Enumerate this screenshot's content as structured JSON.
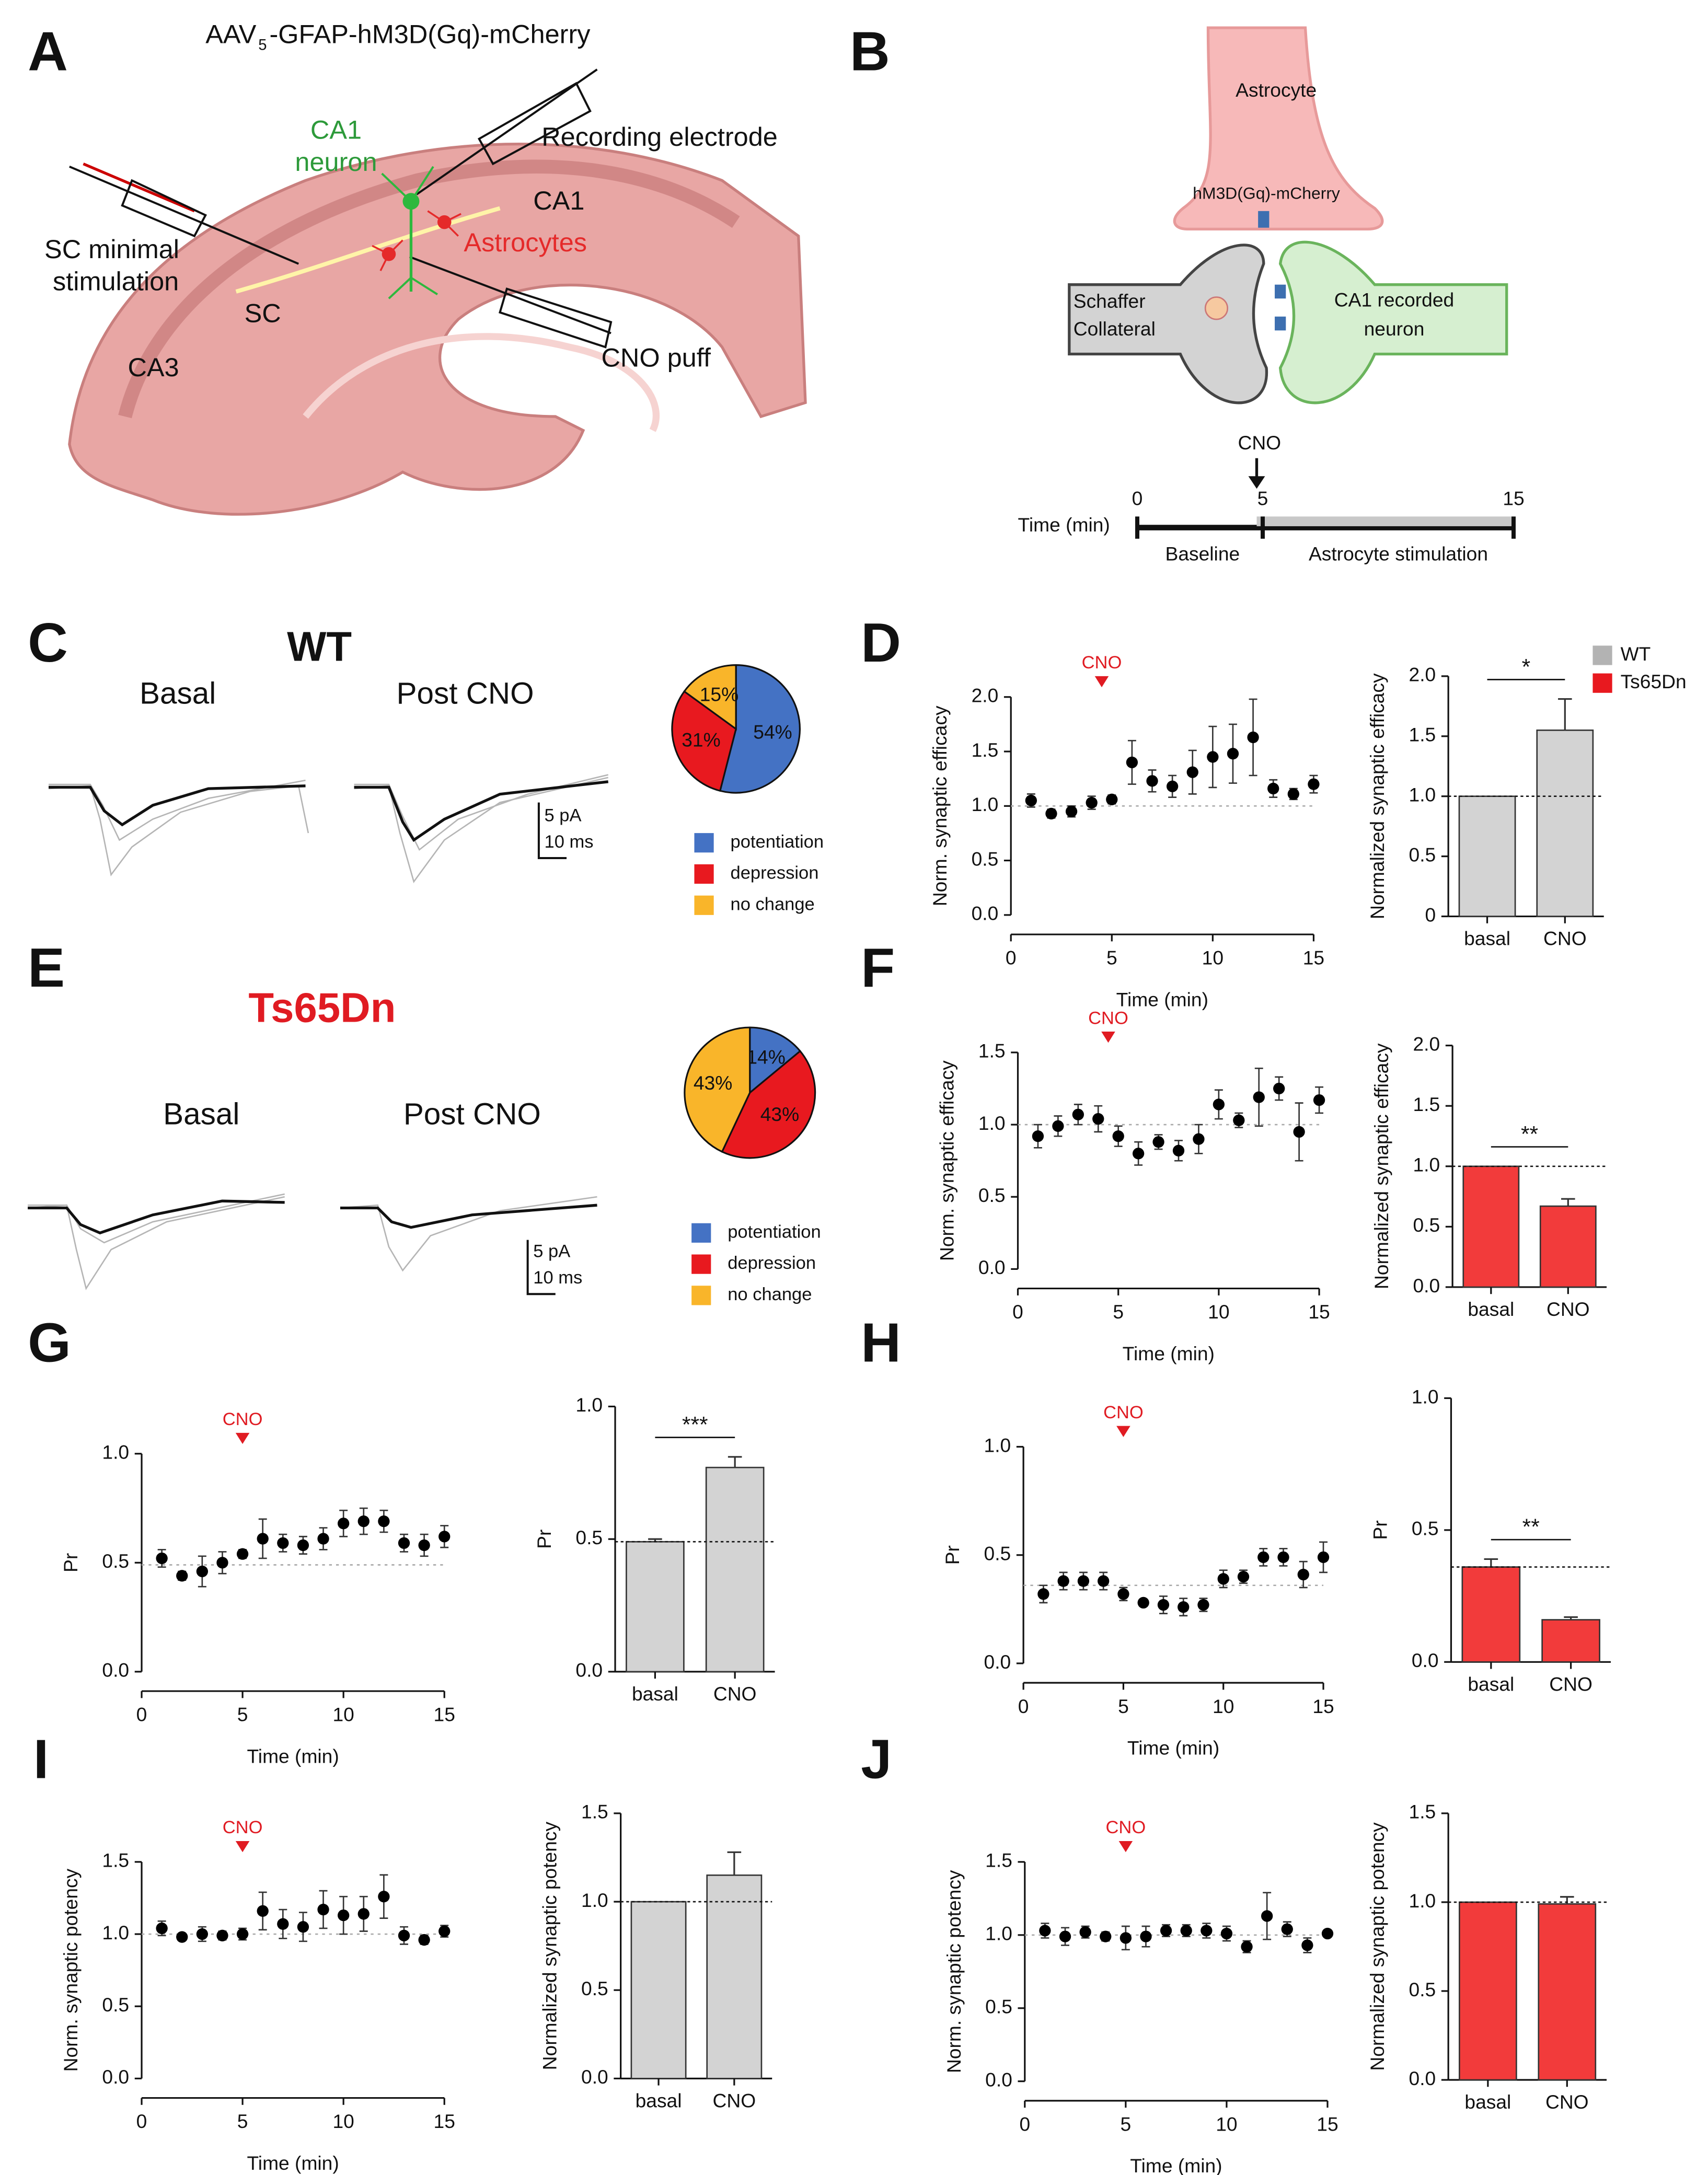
{
  "figure": {
    "letters": [
      "A",
      "B",
      "C",
      "D",
      "E",
      "F",
      "G",
      "H",
      "I",
      "J"
    ],
    "panel_a": {
      "construct_main": "AAV",
      "construct_sub": "5",
      "construct_rest": "-GFAP-hM3D(Gq)-mCherry",
      "ca1_neuron": [
        "CA1",
        "neuron"
      ],
      "recording": "Recording electrode",
      "ca1": "CA1",
      "astrocytes": "Astrocytes",
      "sc_stim": [
        "SC minimal",
        "stimulation"
      ],
      "sc": "SC",
      "ca3": "CA3",
      "cno_puff": "CNO puff"
    },
    "panel_b": {
      "astrocyte": "Astrocyte",
      "receptor": "hM3D(Gq)-mCherry",
      "schaffer": [
        "Schaffer",
        "Collateral"
      ],
      "ca1_neuron": [
        "CA1 recorded",
        "neuron"
      ],
      "cno": "CNO",
      "time_label": "Time (min)",
      "ticks": [
        0,
        5,
        15
      ],
      "xlim": [
        0,
        15
      ],
      "baseline": "Baseline",
      "stimulation": "Astrocyte stimulation"
    },
    "panel_c": {
      "title": "WT",
      "basal": "Basal",
      "post": "Post CNO",
      "scale_y": "5 pA",
      "scale_x": "10 ms"
    },
    "panel_e": {
      "title": "Ts65Dn",
      "basal": "Basal",
      "post": "Post CNO",
      "scale_y": "5 pA",
      "scale_x": "10 ms"
    }
  },
  "chart_data": [
    {
      "type": "pie",
      "labels": [
        "potentiation",
        "depression",
        "no change"
      ],
      "values": [
        54,
        31,
        15
      ],
      "value_labels": [
        "54%",
        "31%",
        "15%"
      ],
      "colors": [
        "#4472c4",
        "#e8191f",
        "#f9b52a"
      ]
    },
    {
      "type": "scatter",
      "x": [
        1,
        2,
        3,
        4,
        5,
        6,
        7,
        8,
        9,
        10,
        11,
        12,
        13,
        14,
        15
      ],
      "values": [
        1.05,
        0.93,
        0.95,
        1.03,
        1.06,
        1.4,
        1.23,
        1.18,
        1.31,
        1.45,
        1.48,
        1.63,
        1.16,
        1.11,
        1.2
      ],
      "errors": [
        0.06,
        0.04,
        0.05,
        0.06,
        0.04,
        0.2,
        0.1,
        0.1,
        0.2,
        0.28,
        0.27,
        0.35,
        0.08,
        0.05,
        0.08
      ],
      "xlim": [
        0,
        15
      ],
      "xticks": [
        0,
        5,
        10,
        15
      ],
      "ylim": [
        0,
        2
      ],
      "yticks": [
        {
          "value": 0,
          "label": "0.0"
        },
        0.5,
        {
          "value": 1,
          "label": "1.0"
        },
        1.5,
        {
          "value": 2,
          "label": "2.0"
        }
      ],
      "xlabel": "Time (min)",
      "ylabel": "Norm. synaptic efficacy",
      "refline": 1,
      "annotation": {
        "text": "CNO",
        "x": 4.5
      },
      "color": "#000000"
    },
    {
      "type": "bar",
      "categories": [
        "basal",
        "CNO"
      ],
      "values": [
        1.0,
        1.55
      ],
      "errors": [
        null,
        0.26
      ],
      "color": "#d3d3d3",
      "ylim": [
        0,
        2
      ],
      "yticks": [
        {
          "value": 0,
          "label": "0"
        },
        0.5,
        {
          "value": 1,
          "label": "1.0"
        },
        1.5,
        {
          "value": 2,
          "label": "2.0"
        }
      ],
      "ylabel": "Normalized synaptic efficacy",
      "refline": 1,
      "significance": "*",
      "legend": [
        {
          "name": "WT",
          "color": "#b3b3b3"
        },
        {
          "name": "Ts65Dn",
          "color": "#e8191f"
        }
      ]
    },
    {
      "type": "pie",
      "labels": [
        "potentiation",
        "depression",
        "no change"
      ],
      "values": [
        14,
        43,
        43
      ],
      "value_labels": [
        "14%",
        "43%",
        "43%"
      ],
      "colors": [
        "#4472c4",
        "#e8191f",
        "#f9b52a"
      ]
    },
    {
      "type": "scatter",
      "x": [
        1,
        2,
        3,
        4,
        5,
        6,
        7,
        8,
        9,
        10,
        11,
        12,
        13,
        14,
        15
      ],
      "values": [
        0.92,
        0.99,
        1.07,
        1.04,
        0.92,
        0.8,
        0.88,
        0.82,
        0.9,
        1.14,
        1.03,
        1.19,
        1.25,
        0.95,
        1.17
      ],
      "errors": [
        0.08,
        0.07,
        0.07,
        0.09,
        0.07,
        0.08,
        0.05,
        0.07,
        0.1,
        0.1,
        0.05,
        0.2,
        0.08,
        0.2,
        0.09
      ],
      "xlim": [
        0,
        15
      ],
      "xticks": [
        0,
        5,
        10,
        15
      ],
      "ylim": [
        0,
        1.5
      ],
      "yticks": [
        {
          "value": 0,
          "label": "0.0"
        },
        0.5,
        {
          "value": 1,
          "label": "1.0"
        },
        1.5
      ],
      "xlabel": "Time (min)",
      "ylabel": "Norm. synaptic efficacy",
      "refline": 1,
      "annotation": {
        "text": "CNO",
        "x": 4.5
      },
      "color": "#000000"
    },
    {
      "type": "bar",
      "categories": [
        "basal",
        "CNO"
      ],
      "values": [
        1.0,
        0.67
      ],
      "errors": [
        null,
        0.06
      ],
      "color": "#f23b3b",
      "ylim": [
        0,
        2
      ],
      "yticks": [
        {
          "value": 0,
          "label": "0.0"
        },
        0.5,
        {
          "value": 1,
          "label": "1.0"
        },
        1.5,
        {
          "value": 2,
          "label": "2.0"
        }
      ],
      "ylabel": "Normalized synaptic efficacy",
      "refline": 1,
      "significance": "**"
    },
    {
      "type": "scatter",
      "x": [
        1,
        2,
        3,
        4,
        5,
        6,
        7,
        8,
        9,
        10,
        11,
        12,
        13,
        14,
        15
      ],
      "values": [
        0.52,
        0.44,
        0.46,
        0.5,
        0.54,
        0.61,
        0.59,
        0.58,
        0.61,
        0.68,
        0.69,
        0.69,
        0.59,
        0.58,
        0.62
      ],
      "errors": [
        0.04,
        0.02,
        0.07,
        0.05,
        0.02,
        0.09,
        0.04,
        0.04,
        0.05,
        0.06,
        0.06,
        0.05,
        0.04,
        0.05,
        0.05
      ],
      "xlim": [
        0,
        15
      ],
      "xticks": [
        0,
        5,
        10,
        15
      ],
      "ylim": [
        0,
        1
      ],
      "yticks": [
        {
          "value": 0,
          "label": "0.0"
        },
        0.5,
        {
          "value": 1,
          "label": "1.0"
        }
      ],
      "xlabel": "Time (min)",
      "ylabel": "Pr",
      "refline": 0.49,
      "annotation": {
        "text": "CNO",
        "x": 5
      },
      "color": "#000000"
    },
    {
      "type": "bar",
      "categories": [
        "basal",
        "CNO"
      ],
      "values": [
        0.49,
        0.77
      ],
      "errors": [
        0.01,
        0.04
      ],
      "color": "#d3d3d3",
      "ylim": [
        0,
        1
      ],
      "yticks": [
        {
          "value": 0,
          "label": "0.0"
        },
        0.5,
        {
          "value": 1,
          "label": "1.0"
        }
      ],
      "ylabel": "Pr",
      "refline": 0.49,
      "significance": "***"
    },
    {
      "type": "scatter",
      "x": [
        1,
        2,
        3,
        4,
        5,
        6,
        7,
        8,
        9,
        10,
        11,
        12,
        13,
        14,
        15
      ],
      "values": [
        0.32,
        0.38,
        0.38,
        0.38,
        0.32,
        0.28,
        0.27,
        0.26,
        0.27,
        0.39,
        0.4,
        0.49,
        0.49,
        0.41,
        0.49
      ],
      "errors": [
        0.04,
        0.04,
        0.04,
        0.04,
        0.03,
        0.01,
        0.04,
        0.04,
        0.03,
        0.04,
        0.03,
        0.04,
        0.04,
        0.06,
        0.07
      ],
      "xlim": [
        0,
        15
      ],
      "xticks": [
        0,
        5,
        10,
        15
      ],
      "ylim": [
        0,
        1
      ],
      "yticks": [
        {
          "value": 0,
          "label": "0.0"
        },
        0.5,
        {
          "value": 1,
          "label": "1.0"
        }
      ],
      "xlabel": "Time (min)",
      "ylabel": "Pr",
      "refline": 0.36,
      "annotation": {
        "text": "CNO",
        "x": 5
      },
      "color": "#000000"
    },
    {
      "type": "bar",
      "categories": [
        "basal",
        "CNO"
      ],
      "values": [
        0.36,
        0.16
      ],
      "errors": [
        0.03,
        0.01
      ],
      "color": "#f23b3b",
      "ylim": [
        0,
        1
      ],
      "yticks": [
        {
          "value": 0,
          "label": "0.0"
        },
        0.5,
        {
          "value": 1,
          "label": "1.0"
        }
      ],
      "ylabel": "Pr",
      "refline": 0.36,
      "significance": "**"
    },
    {
      "type": "scatter",
      "x": [
        1,
        2,
        3,
        4,
        5,
        6,
        7,
        8,
        9,
        10,
        11,
        12,
        13,
        14,
        15
      ],
      "values": [
        1.04,
        0.98,
        1.0,
        0.99,
        1.0,
        1.16,
        1.07,
        1.05,
        1.17,
        1.13,
        1.14,
        1.26,
        0.99,
        0.96,
        1.02
      ],
      "errors": [
        0.05,
        0.02,
        0.05,
        0.03,
        0.04,
        0.13,
        0.1,
        0.1,
        0.13,
        0.13,
        0.12,
        0.15,
        0.06,
        0.03,
        0.04
      ],
      "xlim": [
        0,
        15
      ],
      "xticks": [
        0,
        5,
        10,
        15
      ],
      "ylim": [
        0,
        1.5
      ],
      "yticks": [
        {
          "value": 0,
          "label": "0.0"
        },
        0.5,
        {
          "value": 1,
          "label": "1.0"
        },
        1.5
      ],
      "xlabel": "Time (min)",
      "ylabel": "Norm. synaptic potency",
      "refline": 1,
      "annotation": {
        "text": "CNO",
        "x": 5
      },
      "color": "#000000"
    },
    {
      "type": "bar",
      "categories": [
        "basal",
        "CNO"
      ],
      "values": [
        1.0,
        1.15
      ],
      "errors": [
        null,
        0.13
      ],
      "color": "#d3d3d3",
      "ylim": [
        0,
        1.5
      ],
      "yticks": [
        {
          "value": 0,
          "label": "0.0"
        },
        0.5,
        {
          "value": 1,
          "label": "1.0"
        },
        1.5
      ],
      "ylabel": "Normalized synaptic potency",
      "refline": 1
    },
    {
      "type": "scatter",
      "x": [
        1,
        2,
        3,
        4,
        5,
        6,
        7,
        8,
        9,
        10,
        11,
        12,
        13,
        14,
        15
      ],
      "values": [
        1.03,
        0.99,
        1.02,
        0.99,
        0.98,
        0.99,
        1.03,
        1.03,
        1.03,
        1.01,
        0.92,
        1.13,
        1.04,
        0.93,
        1.01
      ],
      "errors": [
        0.05,
        0.06,
        0.04,
        0.03,
        0.08,
        0.07,
        0.04,
        0.04,
        0.05,
        0.05,
        0.04,
        0.16,
        0.05,
        0.05,
        0.02
      ],
      "xlim": [
        0,
        15
      ],
      "xticks": [
        0,
        5,
        10,
        15
      ],
      "ylim": [
        0,
        1.5
      ],
      "yticks": [
        {
          "value": 0,
          "label": "0.0"
        },
        0.5,
        {
          "value": 1,
          "label": "1.0"
        },
        1.5
      ],
      "xlabel": "Time (min)",
      "ylabel": "Norm. synaptic potency",
      "refline": 1,
      "annotation": {
        "text": "CNO",
        "x": 5
      },
      "color": "#000000"
    },
    {
      "type": "bar",
      "categories": [
        "basal",
        "CNO"
      ],
      "values": [
        1.0,
        0.99
      ],
      "errors": [
        null,
        0.04
      ],
      "color": "#f23b3b",
      "ylim": [
        0,
        1.5
      ],
      "yticks": [
        {
          "value": 0,
          "label": "0.0"
        },
        0.5,
        {
          "value": 1,
          "label": "1.0"
        },
        1.5
      ],
      "ylabel": "Normalized synaptic potency",
      "refline": 1
    }
  ]
}
